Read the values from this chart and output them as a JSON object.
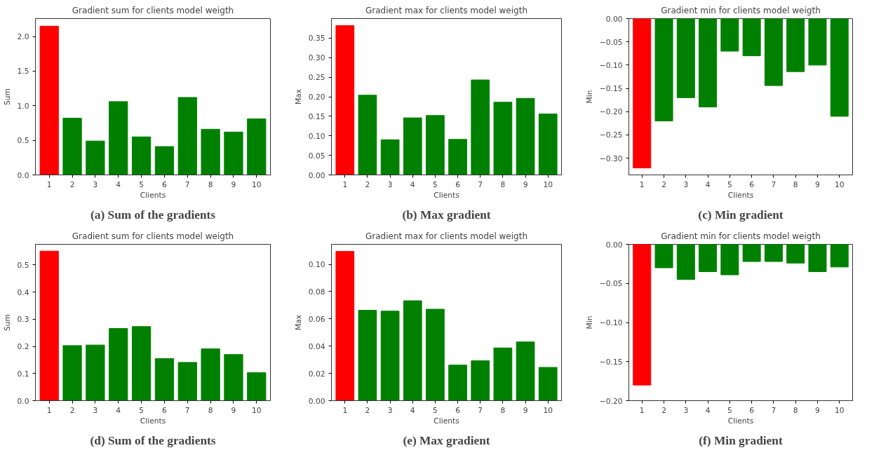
{
  "chart_data": [
    {
      "type": "bar",
      "title": "Gradient sum for clients model weigth",
      "xlabel": "Clients",
      "ylabel": "Sum",
      "annotations": [
        "(a) Sum of the gradients"
      ],
      "categories": [
        "1",
        "2",
        "3",
        "4",
        "5",
        "6",
        "7",
        "8",
        "9",
        "10"
      ],
      "values": [
        2.15,
        0.82,
        0.49,
        1.06,
        0.55,
        0.41,
        1.12,
        0.66,
        0.62,
        0.81
      ],
      "colors": [
        "#ff0000",
        "#008000",
        "#008000",
        "#008000",
        "#008000",
        "#008000",
        "#008000",
        "#008000",
        "#008000",
        "#008000"
      ],
      "ylim": [
        0,
        2.26
      ],
      "yticks": [
        {
          "value": 0,
          "label": "0.0"
        },
        {
          "value": 0.5,
          "label": "0.5"
        },
        {
          "value": 1,
          "label": "1.0"
        },
        {
          "value": 1.5,
          "label": "1.5"
        },
        {
          "value": 2,
          "label": "2.0"
        }
      ],
      "grid": false
    },
    {
      "type": "bar",
      "title": "Gradient max for clients model weigth",
      "xlabel": "Clients",
      "ylabel": "Max",
      "annotations": [
        "(b) Max gradient"
      ],
      "categories": [
        "1",
        "2",
        "3",
        "4",
        "5",
        "6",
        "7",
        "8",
        "9",
        "10"
      ],
      "values": [
        0.382,
        0.204,
        0.09,
        0.146,
        0.152,
        0.091,
        0.243,
        0.186,
        0.196,
        0.156
      ],
      "colors": [
        "#ff0000",
        "#008000",
        "#008000",
        "#008000",
        "#008000",
        "#008000",
        "#008000",
        "#008000",
        "#008000",
        "#008000"
      ],
      "ylim": [
        0,
        0.4
      ],
      "yticks": [
        {
          "value": 0,
          "label": "0.00"
        },
        {
          "value": 0.05,
          "label": "0.05"
        },
        {
          "value": 0.1,
          "label": "0.10"
        },
        {
          "value": 0.15,
          "label": "0.15"
        },
        {
          "value": 0.2,
          "label": "0.20"
        },
        {
          "value": 0.25,
          "label": "0.25"
        },
        {
          "value": 0.3,
          "label": "0.30"
        },
        {
          "value": 0.35,
          "label": "0.35"
        }
      ],
      "grid": false
    },
    {
      "type": "bar",
      "title": "Gradient min for clients model weigth",
      "xlabel": "Clients",
      "ylabel": "Min",
      "annotations": [
        "(c) Min gradient"
      ],
      "categories": [
        "1",
        "2",
        "3",
        "4",
        "5",
        "6",
        "7",
        "8",
        "9",
        "10"
      ],
      "values": [
        -0.321,
        -0.22,
        -0.17,
        -0.19,
        -0.07,
        -0.08,
        -0.144,
        -0.114,
        -0.1,
        -0.21
      ],
      "colors": [
        "#ff0000",
        "#008000",
        "#008000",
        "#008000",
        "#008000",
        "#008000",
        "#008000",
        "#008000",
        "#008000",
        "#008000"
      ],
      "ylim": [
        -0.336,
        0
      ],
      "yticks": [
        {
          "value": -0.3,
          "label": "−0.30"
        },
        {
          "value": -0.25,
          "label": "−0.25"
        },
        {
          "value": -0.2,
          "label": "−0.20"
        },
        {
          "value": -0.15,
          "label": "−0.15"
        },
        {
          "value": -0.1,
          "label": "−0.10"
        },
        {
          "value": -0.05,
          "label": "−0.05"
        },
        {
          "value": 0,
          "label": "0.00"
        }
      ],
      "grid": false
    },
    {
      "type": "bar",
      "title": "Gradient sum for clients model weigth",
      "xlabel": "Clients",
      "ylabel": "Sum",
      "annotations": [
        "(d) Sum of the gradients"
      ],
      "categories": [
        "1",
        "2",
        "3",
        "4",
        "5",
        "6",
        "7",
        "8",
        "9",
        "10"
      ],
      "values": [
        0.551,
        0.203,
        0.205,
        0.266,
        0.273,
        0.155,
        0.141,
        0.191,
        0.17,
        0.103
      ],
      "colors": [
        "#ff0000",
        "#008000",
        "#008000",
        "#008000",
        "#008000",
        "#008000",
        "#008000",
        "#008000",
        "#008000",
        "#008000"
      ],
      "ylim": [
        0,
        0.576
      ],
      "yticks": [
        {
          "value": 0,
          "label": "0.0"
        },
        {
          "value": 0.1,
          "label": "0.1"
        },
        {
          "value": 0.2,
          "label": "0.2"
        },
        {
          "value": 0.3,
          "label": "0.3"
        },
        {
          "value": 0.4,
          "label": "0.4"
        },
        {
          "value": 0.5,
          "label": "0.5"
        }
      ],
      "grid": false
    },
    {
      "type": "bar",
      "title": "Gradient max for clients model weigth",
      "xlabel": "Clients",
      "ylabel": "Max",
      "annotations": [
        "(e) Max gradient"
      ],
      "categories": [
        "1",
        "2",
        "3",
        "4",
        "5",
        "6",
        "7",
        "8",
        "9",
        "10"
      ],
      "values": [
        0.1095,
        0.0663,
        0.0657,
        0.0733,
        0.0671,
        0.0261,
        0.0293,
        0.0387,
        0.0431,
        0.0244
      ],
      "colors": [
        "#ff0000",
        "#008000",
        "#008000",
        "#008000",
        "#008000",
        "#008000",
        "#008000",
        "#008000",
        "#008000",
        "#008000"
      ],
      "ylim": [
        0,
        0.1147
      ],
      "yticks": [
        {
          "value": 0,
          "label": "0.00"
        },
        {
          "value": 0.02,
          "label": "0.02"
        },
        {
          "value": 0.04,
          "label": "0.04"
        },
        {
          "value": 0.06,
          "label": "0.06"
        },
        {
          "value": 0.08,
          "label": "0.08"
        },
        {
          "value": 0.1,
          "label": "0.10"
        }
      ],
      "grid": false
    },
    {
      "type": "bar",
      "title": "Gradient min for clients model weigth",
      "xlabel": "Clients",
      "ylabel": "Min",
      "annotations": [
        "(f) Min gradient"
      ],
      "categories": [
        "1",
        "2",
        "3",
        "4",
        "5",
        "6",
        "7",
        "8",
        "9",
        "10"
      ],
      "values": [
        -0.18,
        -0.03,
        -0.045,
        -0.035,
        -0.039,
        -0.022,
        -0.022,
        -0.024,
        -0.035,
        -0.029
      ],
      "colors": [
        "#ff0000",
        "#008000",
        "#008000",
        "#008000",
        "#008000",
        "#008000",
        "#008000",
        "#008000",
        "#008000",
        "#008000"
      ],
      "ylim": [
        -0.2,
        0
      ],
      "yticks": [
        {
          "value": -0.2,
          "label": "−0.20"
        },
        {
          "value": -0.15,
          "label": "−0.15"
        },
        {
          "value": -0.1,
          "label": "−0.10"
        },
        {
          "value": -0.05,
          "label": "−0.05"
        },
        {
          "value": 0,
          "label": "0.00"
        }
      ],
      "grid": false
    }
  ]
}
